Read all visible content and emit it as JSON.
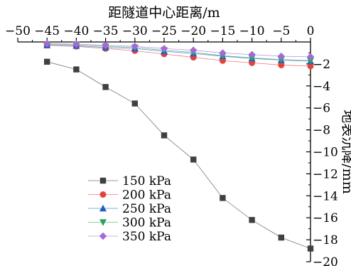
{
  "chart_data": {
    "type": "line",
    "xlabel": "距隧道中心距离/m",
    "ylabel": "地表沉降/mm",
    "xlim": [
      -50,
      0
    ],
    "ylim": [
      -20,
      0
    ],
    "x_ticks": [
      -50,
      -45,
      -40,
      -35,
      -30,
      -25,
      -20,
      -15,
      -10,
      -5,
      0
    ],
    "x_tick_labels": [
      "−50",
      "−45",
      "−40",
      "−35",
      "−30",
      "−25",
      "−20",
      "−15",
      "−10",
      "−5",
      "0"
    ],
    "y_ticks": [
      -2,
      -4,
      -6,
      -8,
      -10,
      -12,
      -14,
      -16,
      -18,
      -20
    ],
    "y_tick_labels": [
      "−2",
      "−4",
      "−6",
      "−8",
      "−10",
      "−12",
      "−14",
      "−16",
      "−18",
      "−20"
    ],
    "x_axis_position": "top",
    "y_axis_position": "right",
    "legend_position": "bottom-left",
    "grid": false,
    "x": [
      -45,
      -40,
      -35,
      -30,
      -25,
      -20,
      -15,
      -10,
      -5,
      0
    ],
    "series": [
      {
        "name": "150 kPa",
        "marker": "square",
        "color": "#404040",
        "values": [
          -1.8,
          -2.5,
          -4.1,
          -5.6,
          -8.5,
          -10.7,
          -14.2,
          -16.2,
          -17.8,
          -18.8
        ]
      },
      {
        "name": "200 kPa",
        "marker": "circle",
        "color": "#e8413c",
        "values": [
          -0.3,
          -0.4,
          -0.6,
          -0.8,
          -1.1,
          -1.4,
          -1.7,
          -1.9,
          -2.1,
          -2.2
        ]
      },
      {
        "name": "250 kPa",
        "marker": "triangle-up",
        "color": "#1f5fbf",
        "values": [
          -0.3,
          -0.35,
          -0.5,
          -0.6,
          -0.85,
          -1.05,
          -1.3,
          -1.5,
          -1.65,
          -1.75
        ]
      },
      {
        "name": "300 kPa",
        "marker": "triangle-down",
        "color": "#2ca25f",
        "values": [
          -0.2,
          -0.25,
          -0.4,
          -0.5,
          -0.75,
          -0.95,
          -1.25,
          -1.45,
          -1.6,
          -1.7
        ]
      },
      {
        "name": "350 kPa",
        "marker": "diamond",
        "color": "#a569d6",
        "values": [
          -0.15,
          -0.2,
          -0.3,
          -0.4,
          -0.6,
          -0.75,
          -1.0,
          -1.15,
          -1.3,
          -1.35
        ]
      }
    ]
  }
}
